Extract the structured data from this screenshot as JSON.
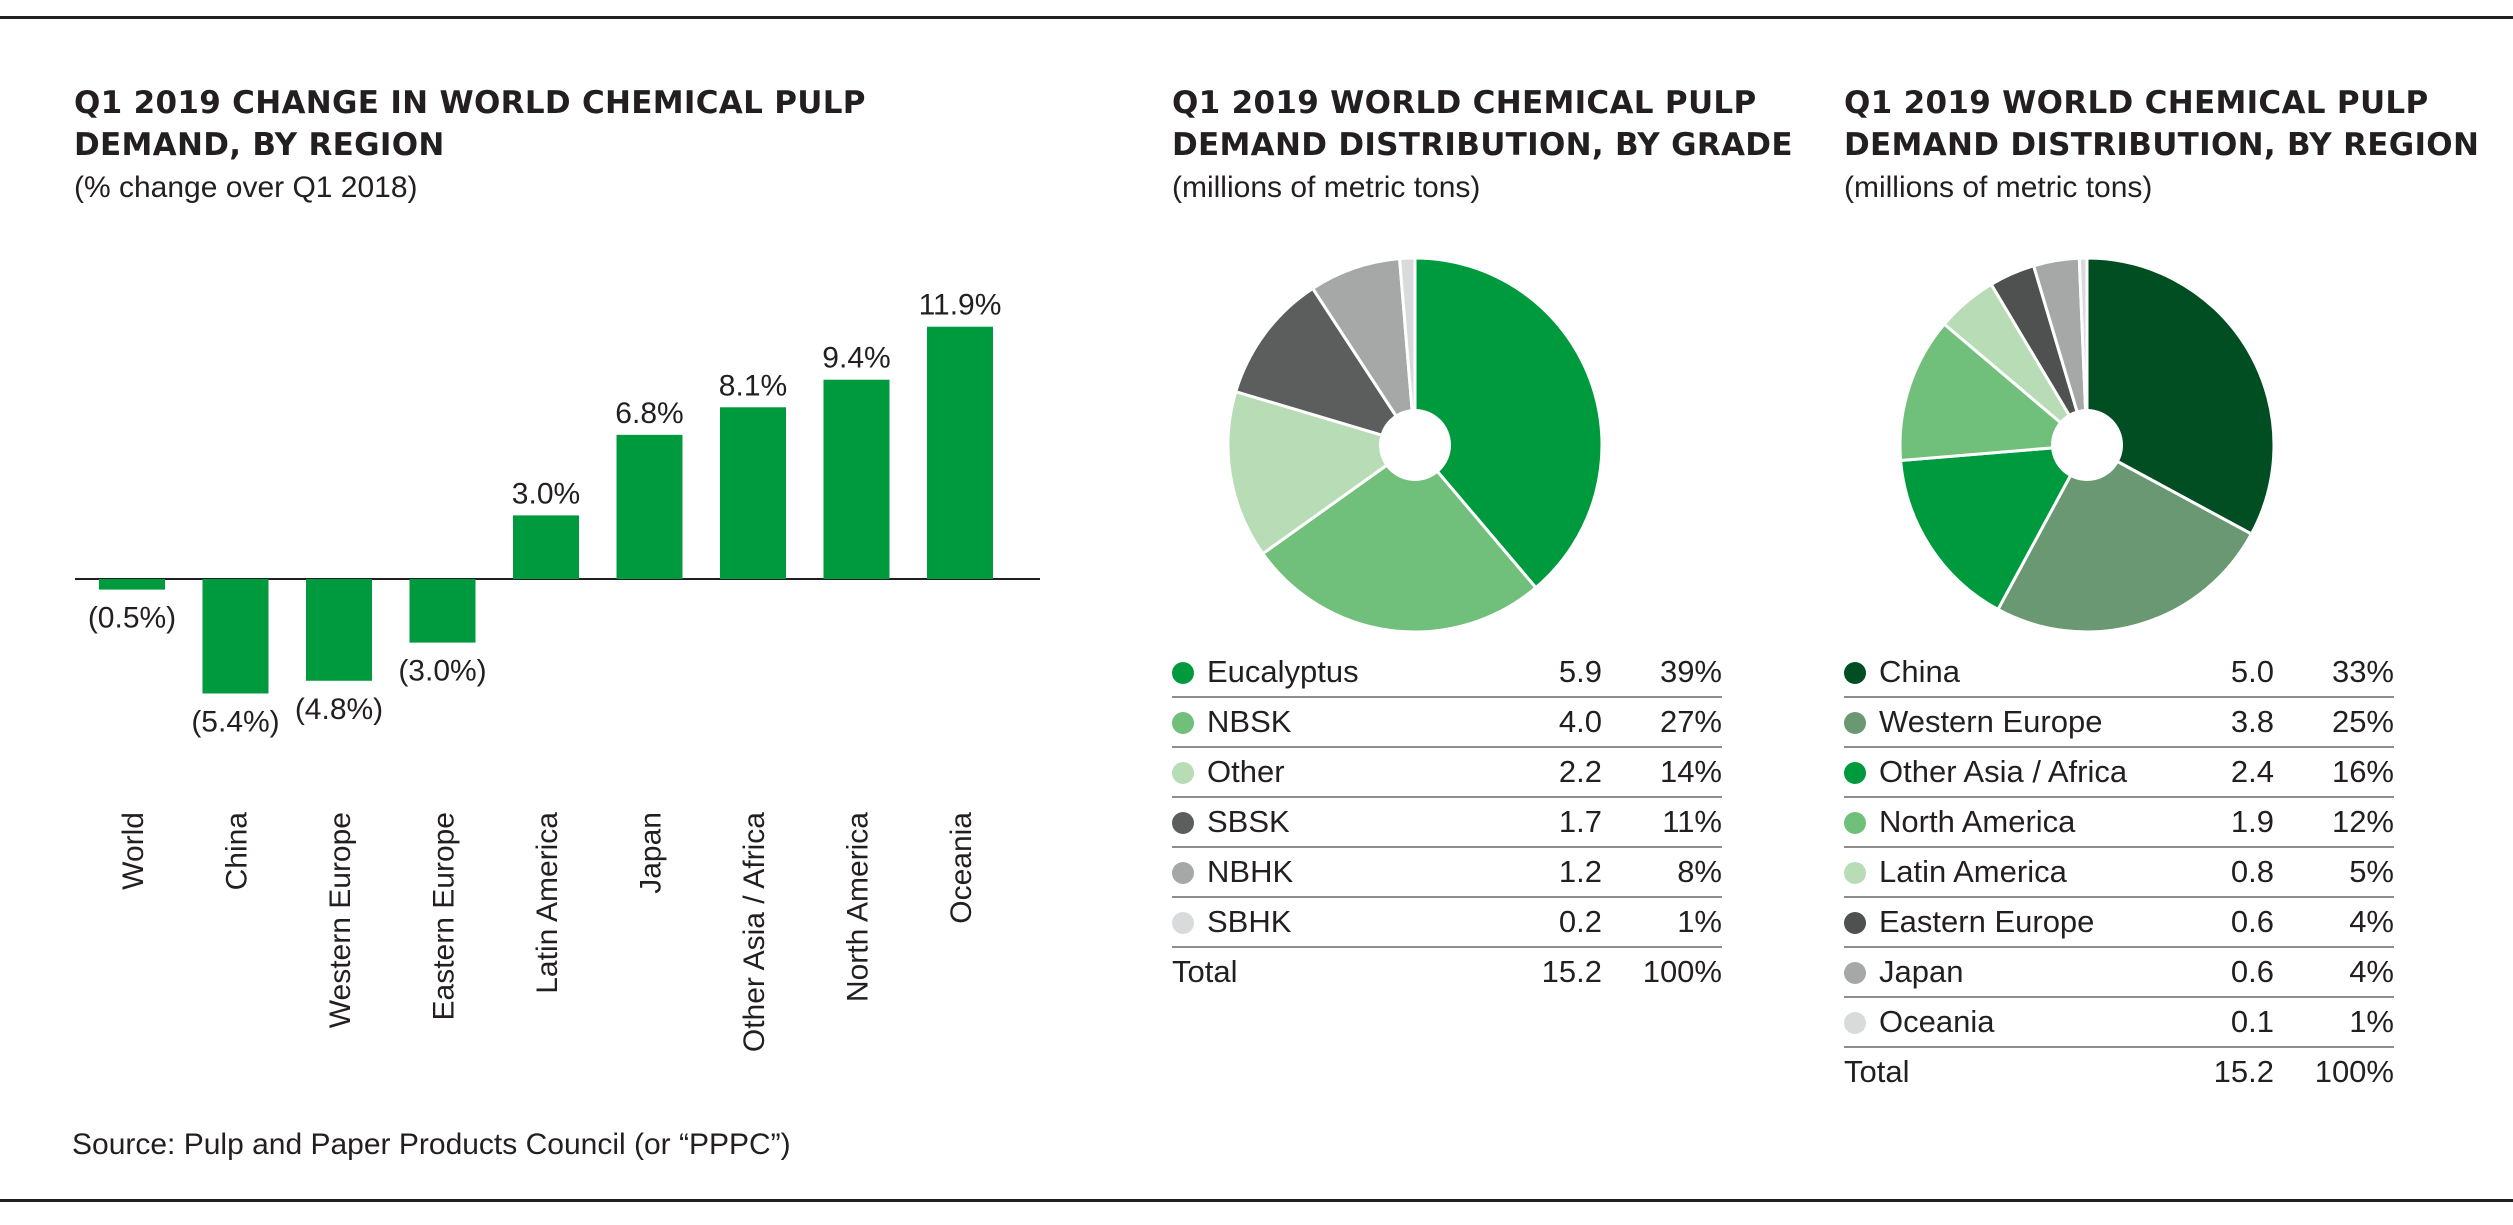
{
  "charts": {
    "bar": {
      "title": "Q1 2019 CHANGE IN WORLD CHEMICAL PULP\nDEMAND, BY REGION",
      "subtitle": "(% change over Q1 2018)"
    },
    "grade": {
      "title": "Q1 2019 WORLD CHEMICAL PULP\nDEMAND DISTRIBUTION, BY GRADE",
      "subtitle": "(millions of metric tons)",
      "rows": [
        {
          "label": "Eucalyptus",
          "value": "5.9",
          "pct": "39%",
          "color": "#009a3e"
        },
        {
          "label": "NBSK",
          "value": "4.0",
          "pct": "27%",
          "color": "#70bf7a"
        },
        {
          "label": "Other",
          "value": "2.2",
          "pct": "14%",
          "color": "#b8dcb5"
        },
        {
          "label": "SBSK",
          "value": "1.7",
          "pct": "11%",
          "color": "#5c5e5d"
        },
        {
          "label": "NBHK",
          "value": "1.2",
          "pct": "8%",
          "color": "#a6a8a7"
        },
        {
          "label": "SBHK",
          "value": "0.2",
          "pct": "1%",
          "color": "#d9dadb"
        }
      ],
      "total": {
        "label": "Total",
        "value": "15.2",
        "pct": "100%"
      }
    },
    "region": {
      "title": "Q1 2019 WORLD CHEMICAL PULP\nDEMAND DISTRIBUTION, BY REGION",
      "subtitle": "(millions of metric tons)",
      "rows": [
        {
          "label": "China",
          "value": "5.0",
          "pct": "33%",
          "color": "#004e22"
        },
        {
          "label": "Western Europe",
          "value": "3.8",
          "pct": "25%",
          "color": "#6a9873"
        },
        {
          "label": "Other Asia / Africa",
          "value": "2.4",
          "pct": "16%",
          "color": "#009a3e"
        },
        {
          "label": "North America",
          "value": "1.9",
          "pct": "12%",
          "color": "#70bf7a"
        },
        {
          "label": "Latin America",
          "value": "0.8",
          "pct": "5%",
          "color": "#b8dcb5"
        },
        {
          "label": "Eastern Europe",
          "value": "0.6",
          "pct": "4%",
          "color": "#4f5150"
        },
        {
          "label": "Japan",
          "value": "0.6",
          "pct": "4%",
          "color": "#a6a8a7"
        },
        {
          "label": "Oceania",
          "value": "0.1",
          "pct": "1%",
          "color": "#d9dadb"
        }
      ],
      "total": {
        "label": "Total",
        "value": "15.2",
        "pct": "100%"
      }
    }
  },
  "source": "Source: Pulp and Paper Products Council (or “PPPC”)",
  "colors": {
    "bar": "#009a3e",
    "rule": "#231f20"
  },
  "chart_data": [
    {
      "type": "bar",
      "title": "Q1 2019 CHANGE IN WORLD CHEMICAL PULP DEMAND, BY REGION",
      "subtitle": "(% change over Q1 2018)",
      "categories": [
        "World",
        "China",
        "Western Europe",
        "Eastern Europe",
        "Latin America",
        "Japan",
        "Other Asia / Africa",
        "North America",
        "Oceania"
      ],
      "values": [
        -0.5,
        -5.4,
        -4.8,
        -3.0,
        3.0,
        6.8,
        8.1,
        9.4,
        11.9
      ],
      "value_labels": [
        "(0.5%)",
        "(5.4%)",
        "(4.8%)",
        "(3.0%)",
        "3.0%",
        "6.8%",
        "8.1%",
        "9.4%",
        "11.9%"
      ],
      "ylim": [
        -6,
        12
      ],
      "xlabel": "",
      "ylabel": "",
      "grid": false
    },
    {
      "type": "pie",
      "title": "Q1 2019 WORLD CHEMICAL PULP DEMAND DISTRIBUTION, BY GRADE",
      "subtitle": "(millions of metric tons)",
      "categories": [
        "Eucalyptus",
        "NBSK",
        "Other",
        "SBSK",
        "NBHK",
        "SBHK"
      ],
      "values": [
        5.9,
        4.0,
        2.2,
        1.7,
        1.2,
        0.2
      ],
      "percents": [
        39,
        27,
        14,
        11,
        8,
        1
      ],
      "total": 15.2
    },
    {
      "type": "pie",
      "title": "Q1 2019 WORLD CHEMICAL PULP DEMAND DISTRIBUTION, BY REGION",
      "subtitle": "(millions of metric tons)",
      "categories": [
        "China",
        "Western Europe",
        "Other Asia / Africa",
        "North America",
        "Latin America",
        "Eastern Europe",
        "Japan",
        "Oceania"
      ],
      "values": [
        5.0,
        3.8,
        2.4,
        1.9,
        0.8,
        0.6,
        0.6,
        0.1
      ],
      "percents": [
        33,
        25,
        16,
        12,
        5,
        4,
        4,
        1
      ],
      "total": 15.2
    }
  ]
}
